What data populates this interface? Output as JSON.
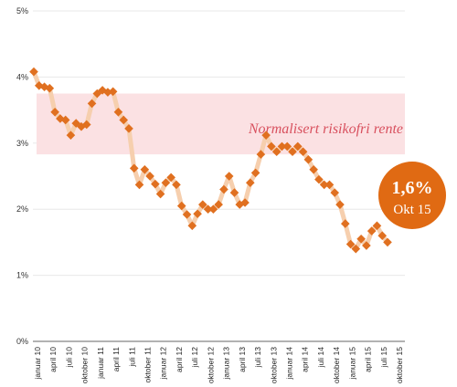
{
  "chart_data": {
    "type": "line",
    "y_tick_labels": [
      "0%",
      "1%",
      "2%",
      "3%",
      "4%",
      "5%"
    ],
    "ylim": [
      0,
      5
    ],
    "grid": true,
    "x_tick_labels": [
      "januar 10",
      "april 10",
      "juli 10",
      "oktober 10",
      "januar 11",
      "april 11",
      "juli 11",
      "oktober 11",
      "januar 12",
      "april 12",
      "juli 12",
      "oktober 12",
      "januar 13",
      "april 13",
      "juli 13",
      "oktober 13",
      "januar 14",
      "april 14",
      "juli 14",
      "oktober 14",
      "januar 15",
      "april 15",
      "juli 15",
      "oktober 15"
    ],
    "series": [
      {
        "values": [
          4.08,
          3.87,
          3.85,
          3.83,
          3.47,
          3.37,
          3.35,
          3.12,
          3.3,
          3.25,
          3.28,
          3.6,
          3.75,
          3.8,
          3.77,
          3.78,
          3.47,
          3.35,
          3.22,
          2.62,
          2.37,
          2.6,
          2.5,
          2.38,
          2.23,
          2.4,
          2.48,
          2.37,
          2.05,
          1.92,
          1.75,
          1.93,
          2.07,
          2.0,
          2.0,
          2.07,
          2.3,
          2.5,
          2.25,
          2.07,
          2.1,
          2.4,
          2.55,
          2.83,
          3.12,
          2.95,
          2.87,
          2.95,
          2.95,
          2.87,
          2.95,
          2.87,
          2.75,
          2.6,
          2.45,
          2.37,
          2.37,
          2.25,
          2.07,
          1.78,
          1.47,
          1.4,
          1.55,
          1.45,
          1.67,
          1.75,
          1.6,
          1.5
        ]
      }
    ],
    "band": {
      "from": 2.83,
      "to": 3.75,
      "label": "Normalisert risikofri rente"
    },
    "callout": {
      "value": "1,6%",
      "sublabel": "Okt 15"
    },
    "colors": {
      "marker": "#e07020",
      "line": "#f6cfae",
      "band_fill": "#fbe1e3",
      "band_label": "#d8505e",
      "callout_fill": "#e06a13",
      "grid": "#e8e8e8",
      "baseline": "#999999"
    }
  }
}
